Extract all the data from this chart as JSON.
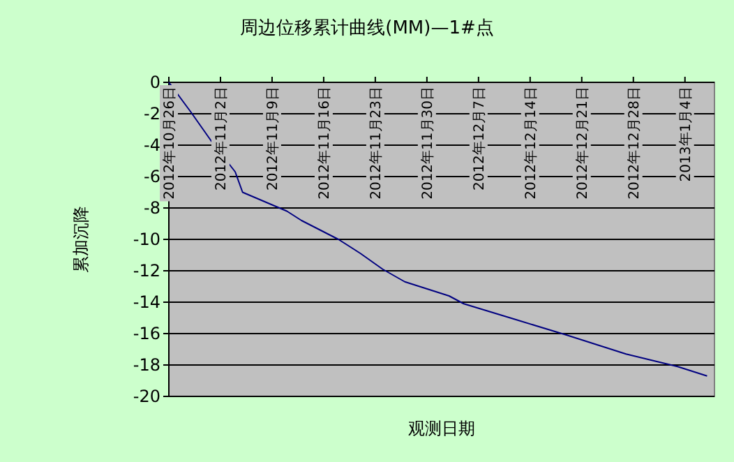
{
  "chart_data": {
    "type": "line",
    "title": "周边位移累计曲线(MM)—1#点",
    "xlabel": "观测日期",
    "ylabel": "累加沉降",
    "x": [
      "2012-10-26",
      "2012-10-29",
      "2012-11-01",
      "2012-11-04",
      "2012-11-05",
      "2012-11-08",
      "2012-11-11",
      "2012-11-13",
      "2012-11-18",
      "2012-11-21",
      "2012-11-24",
      "2012-11-27",
      "2012-12-03",
      "2012-12-05",
      "2012-12-12",
      "2012-12-19",
      "2012-12-27",
      "2013-01-03",
      "2013-01-07"
    ],
    "series": [
      {
        "color": "#000080",
        "values": [
          0,
          -1.9,
          -3.9,
          -5.7,
          -7.0,
          -7.6,
          -8.2,
          -8.8,
          -10.0,
          -10.9,
          -11.9,
          -12.7,
          -13.6,
          -14.1,
          -15.1,
          -16.1,
          -17.3,
          -18.1,
          -18.7
        ]
      }
    ],
    "xlim": [
      "2012-10-26",
      "2013-01-08"
    ],
    "xticks": [
      {
        "value": "2012-10-26",
        "label": "2012年10月26日"
      },
      {
        "value": "2012-11-02",
        "label": "2012年11月2日"
      },
      {
        "value": "2012-11-09",
        "label": "2012年11月9日"
      },
      {
        "value": "2012-11-16",
        "label": "2012年11月16日"
      },
      {
        "value": "2012-11-23",
        "label": "2012年11月23日"
      },
      {
        "value": "2012-11-30",
        "label": "2012年11月30日"
      },
      {
        "value": "2012-12-07",
        "label": "2012年12月7日"
      },
      {
        "value": "2012-12-14",
        "label": "2012年12月14日"
      },
      {
        "value": "2012-12-21",
        "label": "2012年12月21日"
      },
      {
        "value": "2012-12-28",
        "label": "2012年12月28日"
      },
      {
        "value": "2013-01-04",
        "label": "2013年1月4日"
      }
    ],
    "ylim": [
      -20,
      0
    ],
    "yticks": [
      0,
      -2,
      -4,
      -6,
      -8,
      -10,
      -12,
      -14,
      -16,
      -18,
      -20
    ],
    "grid": "y",
    "marker": "none",
    "line_style": "solid"
  }
}
